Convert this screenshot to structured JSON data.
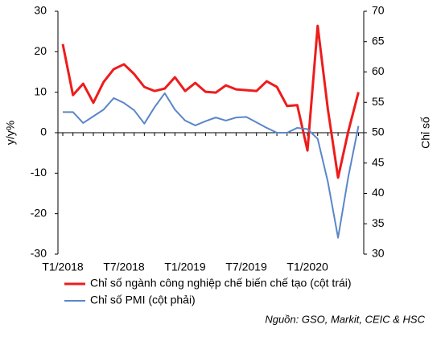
{
  "chart_data": {
    "type": "line",
    "y_label": "y/y%",
    "y2_label": "Chỉ số",
    "categories": [
      "T1/2018",
      null,
      null,
      null,
      null,
      null,
      "T7/2018",
      null,
      null,
      null,
      null,
      null,
      "T1/2019",
      null,
      null,
      null,
      null,
      null,
      "T7/2019",
      null,
      null,
      null,
      null,
      null,
      "T1/2020",
      null,
      null,
      null,
      null,
      null
    ],
    "series": [
      {
        "name": "Chỉ số ngành công nghiệp chế biến chế tạo (cột trái)",
        "color": "#ee1c1c",
        "values": [
          21.9,
          9.3,
          12.1,
          7.4,
          12.5,
          15.7,
          16.9,
          14.5,
          11.3,
          10.3,
          10.9,
          13.7,
          10.3,
          12.3,
          10.1,
          9.9,
          11.7,
          10.7,
          10.5,
          10.3,
          12.7,
          11.3,
          6.6,
          6.8,
          -4.4,
          26.4,
          5.8,
          -11.1,
          0.3,
          10.0
        ]
      },
      {
        "name": "Chỉ số PMI (cột phải)",
        "color": "#5b86c8",
        "axis": "y2",
        "values": [
          53.4,
          53.4,
          51.6,
          52.7,
          53.8,
          55.7,
          54.9,
          53.7,
          51.5,
          54.2,
          56.5,
          53.8,
          52.0,
          51.2,
          51.9,
          52.5,
          52.0,
          52.5,
          52.6,
          51.7,
          50.8,
          50.0,
          50.0,
          50.8,
          50.6,
          49.0,
          41.9,
          32.7,
          42.7,
          51.1
        ]
      }
    ],
    "ylim": [
      -30,
      30
    ],
    "yticks": [
      -30,
      -20,
      -10,
      0,
      10,
      20,
      30
    ],
    "y2lim": [
      30,
      70
    ],
    "y2ticks": [
      30,
      35,
      40,
      45,
      50,
      55,
      60,
      65,
      70
    ],
    "source": "Nguồn: GSO, Markit, CEIC & HSC"
  }
}
